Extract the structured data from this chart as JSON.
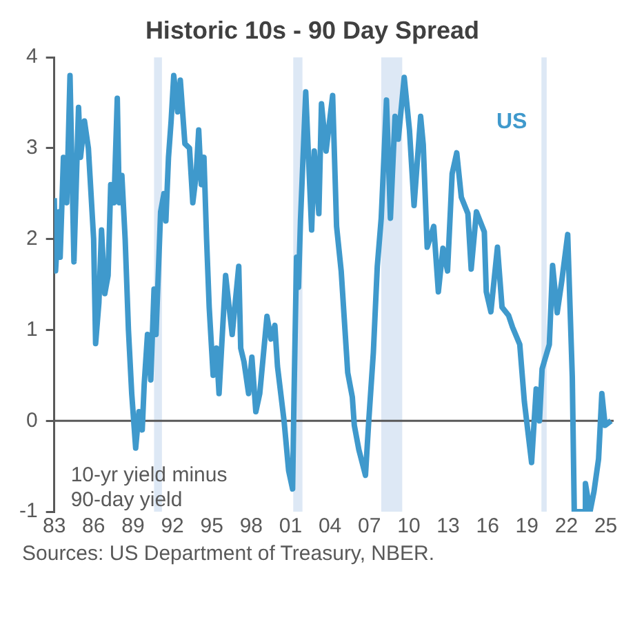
{
  "chart_data": {
    "type": "line",
    "title": "Historic 10s - 90 Day Spread",
    "annotations": [
      "10-yr yield minus 90-day yield",
      "Sources: US Department of Treasury, NBER."
    ],
    "x": [
      1983.0,
      1983.1,
      1983.35,
      1983.45,
      1983.7,
      1983.95,
      1984.2,
      1984.5,
      1984.85,
      1985.0,
      1985.3,
      1985.6,
      1986.0,
      1986.15,
      1986.4,
      1986.6,
      1986.85,
      1987.1,
      1987.3,
      1987.55,
      1987.8,
      1987.95,
      1988.15,
      1988.4,
      1988.65,
      1988.9,
      1989.2,
      1989.45,
      1989.7,
      1989.85,
      1990.1,
      1990.35,
      1990.6,
      1990.75,
      1991.1,
      1991.35,
      1991.5,
      1991.7,
      1991.9,
      1992.1,
      1992.4,
      1992.6,
      1992.95,
      1993.3,
      1993.55,
      1993.8,
      1994.0,
      1994.2,
      1994.4,
      1994.6,
      1994.8,
      1995.1,
      1995.35,
      1995.55,
      1996.05,
      1996.55,
      1997.05,
      1997.2,
      1997.45,
      1997.8,
      1998.05,
      1998.35,
      1998.65,
      1999.2,
      1999.5,
      1999.8,
      2000.0,
      2000.5,
      2000.85,
      2001.15,
      2001.25,
      2001.45,
      2001.6,
      2001.75,
      2002.15,
      2002.6,
      2002.8,
      2003.15,
      2003.35,
      2003.7,
      2004.2,
      2004.5,
      2004.85,
      2005.35,
      2005.7,
      2005.85,
      2006.2,
      2006.7,
      2006.95,
      2007.3,
      2007.6,
      2007.9,
      2008.3,
      2008.6,
      2008.95,
      2009.2,
      2009.65,
      2010.05,
      2010.4,
      2010.9,
      2011.1,
      2011.4,
      2011.9,
      2012.25,
      2012.6,
      2012.95,
      2013.3,
      2013.65,
      2014.0,
      2014.5,
      2014.75,
      2015.15,
      2015.75,
      2015.9,
      2016.25,
      2016.75,
      2017.1,
      2017.6,
      2017.9,
      2018.45,
      2018.8,
      2019.35,
      2019.7,
      2019.95,
      2020.15,
      2020.7,
      2020.95,
      2021.3,
      2021.65,
      2022.1,
      2022.45,
      2022.6,
      2023.4,
      2023.45,
      2023.8,
      2024.1,
      2024.45,
      2024.7,
      2024.95,
      2025.4
    ],
    "series": [
      {
        "name": "US",
        "color": "#3f99cc",
        "values": [
          2.45,
          1.65,
          2.3,
          1.8,
          2.9,
          2.4,
          3.8,
          1.75,
          3.45,
          2.9,
          3.3,
          3.0,
          2.0,
          0.85,
          1.3,
          2.1,
          1.4,
          1.6,
          2.6,
          2.4,
          3.55,
          2.4,
          2.7,
          2.0,
          1.0,
          0.3,
          -0.3,
          0.1,
          -0.1,
          0.4,
          0.95,
          0.45,
          1.45,
          0.95,
          2.3,
          2.5,
          2.2,
          2.9,
          3.3,
          3.8,
          3.4,
          3.75,
          3.05,
          3.0,
          2.4,
          2.7,
          3.2,
          2.6,
          2.9,
          2.0,
          1.25,
          0.5,
          0.8,
          0.3,
          1.6,
          0.95,
          1.7,
          0.8,
          0.65,
          0.3,
          0.7,
          0.1,
          0.3,
          1.15,
          0.9,
          1.05,
          0.6,
          0.0,
          -0.55,
          -0.75,
          0.2,
          1.8,
          1.47,
          2.2,
          3.62,
          2.1,
          2.97,
          2.28,
          3.49,
          2.97,
          3.58,
          2.14,
          1.65,
          0.53,
          0.26,
          -0.05,
          -0.32,
          -0.6,
          0.0,
          0.75,
          1.7,
          2.23,
          3.53,
          2.23,
          3.35,
          3.1,
          3.78,
          3.2,
          2.37,
          3.35,
          3.04,
          1.91,
          2.14,
          1.42,
          1.9,
          1.65,
          2.72,
          2.95,
          2.46,
          2.28,
          1.67,
          2.3,
          2.08,
          1.42,
          1.2,
          1.91,
          1.25,
          1.16,
          1.03,
          0.84,
          0.21,
          -0.46,
          0.35,
          0.0,
          0.57,
          0.84,
          1.71,
          1.19,
          1.54,
          2.05,
          0.48,
          -1.0,
          -1.0,
          -0.69,
          -1.0,
          -0.78,
          -0.42,
          0.3,
          -0.05,
          0.0
        ]
      }
    ],
    "xlim": [
      1983,
      2025.6
    ],
    "xticks": [
      {
        "value": 1983,
        "label": "83"
      },
      {
        "value": 1986,
        "label": "86"
      },
      {
        "value": 1989,
        "label": "89"
      },
      {
        "value": 1992,
        "label": "92"
      },
      {
        "value": 1995,
        "label": "95"
      },
      {
        "value": 1998,
        "label": "98"
      },
      {
        "value": 2001,
        "label": "01"
      },
      {
        "value": 2004,
        "label": "04"
      },
      {
        "value": 2007,
        "label": "07"
      },
      {
        "value": 2010,
        "label": "10"
      },
      {
        "value": 2013,
        "label": "13"
      },
      {
        "value": 2016,
        "label": "16"
      },
      {
        "value": 2019,
        "label": "19"
      },
      {
        "value": 2022,
        "label": "22"
      },
      {
        "value": 2025,
        "label": "25"
      }
    ],
    "ylim": [
      -1,
      4
    ],
    "yticks": [
      -1,
      0,
      1,
      2,
      3,
      4
    ],
    "bands": [
      {
        "axis": "x",
        "from": 1990.6,
        "to": 1991.2,
        "color": "#dde8f5"
      },
      {
        "axis": "x",
        "from": 2001.2,
        "to": 2001.9,
        "color": "#dde8f5"
      },
      {
        "axis": "x",
        "from": 2007.9,
        "to": 2009.5,
        "color": "#dde8f5"
      },
      {
        "axis": "x",
        "from": 2020.1,
        "to": 2020.5,
        "color": "#dde8f5"
      }
    ],
    "ref_lines": [
      {
        "axis": "y",
        "value": 0,
        "color": "#595959"
      }
    ],
    "grid": false,
    "legend": false,
    "line_style": "solid",
    "marker": "none"
  }
}
